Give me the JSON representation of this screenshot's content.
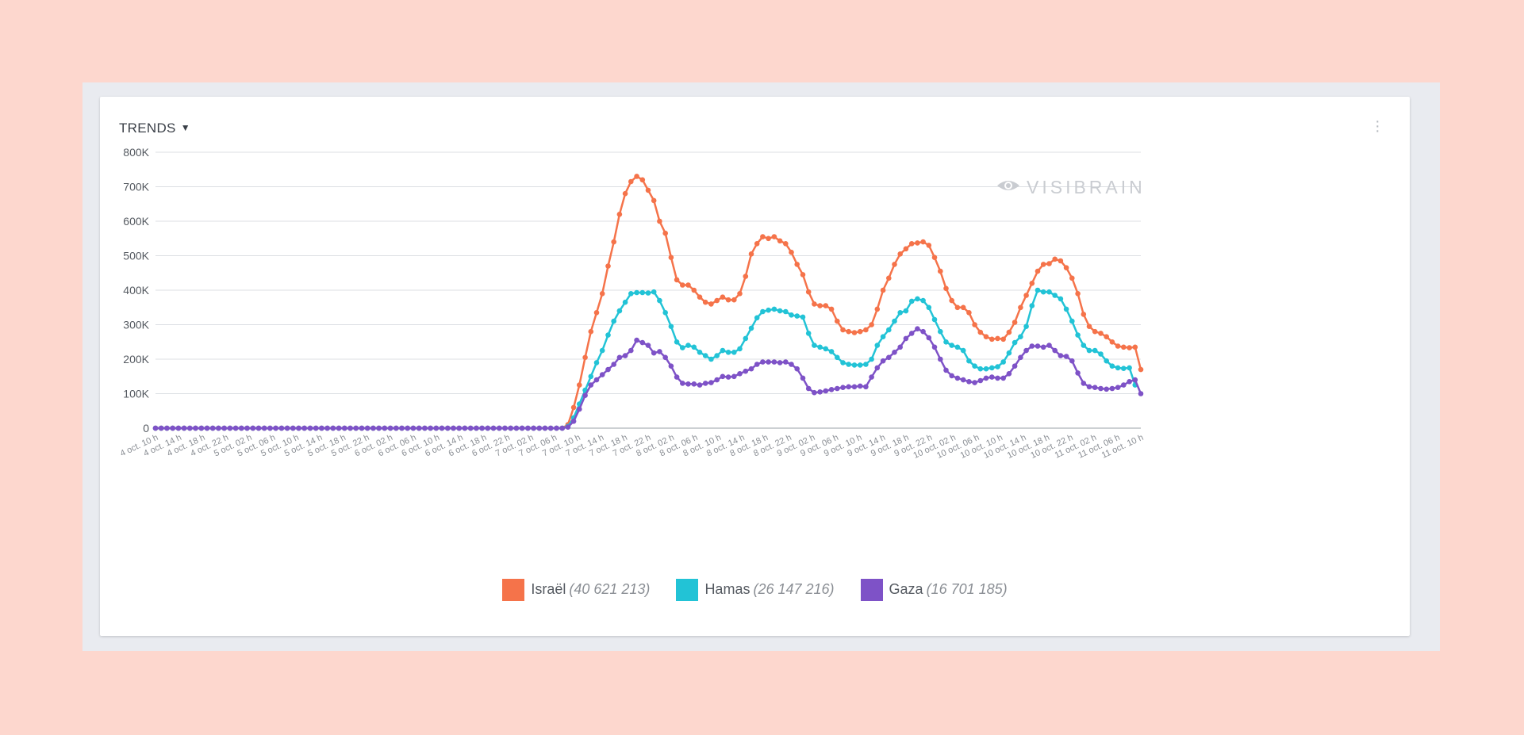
{
  "widget": {
    "title": "TRENDS",
    "menu_icon": "vertical-ellipsis-icon",
    "caret_icon": "caret-down-icon"
  },
  "watermark": {
    "text": "VISIBRAIN",
    "icon": "eye-icon"
  },
  "colors": {
    "israel": "#f5734a",
    "hamas": "#22c3d6",
    "gaza": "#7e52c7",
    "grid": "#dcdfe3",
    "background": "#fdd7ce"
  },
  "chart_data": {
    "type": "line",
    "y_ticks": [
      "0",
      "100K",
      "200K",
      "300K",
      "400K",
      "500K",
      "600K",
      "700K",
      "800K"
    ],
    "ylim": [
      0,
      800000
    ],
    "grid": true,
    "legend_position": "bottom-center",
    "x_labels": [
      "4 oct. 10 h",
      "4 oct. 14 h",
      "4 oct. 18 h",
      "4 oct. 22 h",
      "5 oct. 02 h",
      "5 oct. 06 h",
      "5 oct. 10 h",
      "5 oct. 14 h",
      "5 oct. 18 h",
      "5 oct. 22 h",
      "6 oct. 02 h",
      "6 oct. 06 h",
      "6 oct. 10 h",
      "6 oct. 14 h",
      "6 oct. 18 h",
      "6 oct. 22 h",
      "7 oct. 02 h",
      "7 oct. 06 h",
      "7 oct. 10 h",
      "7 oct. 14 h",
      "7 oct. 18 h",
      "7 oct. 22 h",
      "8 oct. 02 h",
      "8 oct. 06 h",
      "8 oct. 10 h",
      "8 oct. 14 h",
      "8 oct. 18 h",
      "8 oct. 22 h",
      "9 oct. 02 h",
      "9 oct. 06 h",
      "9 oct. 10 h",
      "9 oct. 14 h",
      "9 oct. 18 h",
      "9 oct. 22 h",
      "10 oct. 02 h",
      "10 oct. 06 h",
      "10 oct. 10 h",
      "10 oct. 14 h",
      "10 oct. 18 h",
      "10 oct. 22 h",
      "11 oct. 02 h",
      "11 oct. 06 h",
      "11 oct. 10 h"
    ],
    "hours_per_point": 1,
    "series": [
      {
        "name": "Israël",
        "total": "(40 621 213)",
        "color": "#f5734a",
        "values": [
          0,
          0,
          0,
          0,
          0,
          0,
          0,
          0,
          0,
          0,
          0,
          0,
          0,
          0,
          0,
          0,
          0,
          0,
          0,
          0,
          0,
          0,
          0,
          0,
          0,
          0,
          0,
          0,
          0,
          0,
          0,
          0,
          0,
          0,
          0,
          0,
          0,
          0,
          0,
          0,
          0,
          0,
          0,
          0,
          0,
          0,
          0,
          0,
          0,
          0,
          0,
          0,
          0,
          0,
          0,
          0,
          0,
          0,
          0,
          0,
          0,
          0,
          0,
          0,
          0,
          0,
          0,
          0,
          0,
          0,
          0,
          0,
          10000,
          60000,
          125000,
          205000,
          280000,
          335000,
          390000,
          470000,
          540000,
          620000,
          680000,
          715000,
          730000,
          720000,
          690000,
          660000,
          600000,
          565000,
          495000,
          430000,
          415000,
          415000,
          400000,
          380000,
          365000,
          360000,
          370000,
          380000,
          372000,
          372000,
          390000,
          440000,
          505000,
          535000,
          555000,
          550000,
          555000,
          543000,
          535000,
          510000,
          475000,
          445000,
          395000,
          360000,
          355000,
          355000,
          345000,
          310000,
          285000,
          280000,
          277000,
          280000,
          285000,
          300000,
          345000,
          400000,
          435000,
          475000,
          505000,
          520000,
          535000,
          537000,
          540000,
          530000,
          495000,
          455000,
          405000,
          370000,
          350000,
          350000,
          335000,
          300000,
          278000,
          265000,
          258000,
          260000,
          258000,
          278000,
          307000,
          350000,
          385000,
          420000,
          455000,
          475000,
          477000,
          490000,
          485000,
          465000,
          435000,
          390000,
          330000,
          295000,
          280000,
          275000,
          265000,
          250000,
          238000,
          235000,
          233000,
          235000,
          170000
        ]
      },
      {
        "name": "Hamas",
        "total": "(26 147 216)",
        "color": "#22c3d6",
        "values": [
          0,
          0,
          0,
          0,
          0,
          0,
          0,
          0,
          0,
          0,
          0,
          0,
          0,
          0,
          0,
          0,
          0,
          0,
          0,
          0,
          0,
          0,
          0,
          0,
          0,
          0,
          0,
          0,
          0,
          0,
          0,
          0,
          0,
          0,
          0,
          0,
          0,
          0,
          0,
          0,
          0,
          0,
          0,
          0,
          0,
          0,
          0,
          0,
          0,
          0,
          0,
          0,
          0,
          0,
          0,
          0,
          0,
          0,
          0,
          0,
          0,
          0,
          0,
          0,
          0,
          0,
          0,
          0,
          0,
          0,
          0,
          0,
          5000,
          30000,
          70000,
          110000,
          150000,
          190000,
          225000,
          270000,
          310000,
          340000,
          365000,
          390000,
          393000,
          393000,
          392000,
          395000,
          370000,
          335000,
          295000,
          250000,
          233000,
          240000,
          235000,
          220000,
          210000,
          200000,
          210000,
          225000,
          220000,
          220000,
          230000,
          260000,
          290000,
          320000,
          338000,
          342000,
          345000,
          340000,
          338000,
          328000,
          325000,
          322000,
          275000,
          240000,
          235000,
          230000,
          222000,
          205000,
          190000,
          185000,
          183000,
          183000,
          185000,
          200000,
          240000,
          265000,
          285000,
          310000,
          335000,
          340000,
          368000,
          375000,
          370000,
          350000,
          315000,
          280000,
          250000,
          240000,
          235000,
          225000,
          195000,
          180000,
          172000,
          172000,
          175000,
          178000,
          192000,
          218000,
          248000,
          265000,
          295000,
          355000,
          400000,
          395000,
          395000,
          385000,
          375000,
          345000,
          310000,
          270000,
          240000,
          225000,
          225000,
          215000,
          195000,
          180000,
          175000,
          173000,
          175000,
          125000
        ]
      },
      {
        "name": "Gaza",
        "total": "(16 701 185)",
        "color": "#7e52c7",
        "values": [
          0,
          0,
          0,
          0,
          0,
          0,
          0,
          0,
          0,
          0,
          0,
          0,
          0,
          0,
          0,
          0,
          0,
          0,
          0,
          0,
          0,
          0,
          0,
          0,
          0,
          0,
          0,
          0,
          0,
          0,
          0,
          0,
          0,
          0,
          0,
          0,
          0,
          0,
          0,
          0,
          0,
          0,
          0,
          0,
          0,
          0,
          0,
          0,
          0,
          0,
          0,
          0,
          0,
          0,
          0,
          0,
          0,
          0,
          0,
          0,
          0,
          0,
          0,
          0,
          0,
          0,
          0,
          0,
          0,
          0,
          0,
          0,
          3000,
          20000,
          55000,
          95000,
          125000,
          140000,
          155000,
          170000,
          185000,
          205000,
          210000,
          225000,
          255000,
          248000,
          240000,
          218000,
          222000,
          205000,
          180000,
          148000,
          130000,
          128000,
          128000,
          125000,
          130000,
          132000,
          140000,
          150000,
          148000,
          150000,
          158000,
          165000,
          172000,
          185000,
          192000,
          192000,
          192000,
          190000,
          192000,
          185000,
          172000,
          145000,
          115000,
          103000,
          105000,
          108000,
          112000,
          115000,
          118000,
          120000,
          120000,
          122000,
          120000,
          148000,
          175000,
          195000,
          205000,
          220000,
          235000,
          260000,
          275000,
          288000,
          280000,
          262000,
          235000,
          200000,
          168000,
          152000,
          145000,
          140000,
          135000,
          132000,
          138000,
          145000,
          148000,
          145000,
          145000,
          158000,
          180000,
          205000,
          225000,
          238000,
          238000,
          235000,
          240000,
          225000,
          210000,
          208000,
          195000,
          160000,
          130000,
          120000,
          118000,
          115000,
          113000,
          115000,
          118000,
          125000,
          135000,
          140000,
          100000
        ]
      }
    ]
  }
}
